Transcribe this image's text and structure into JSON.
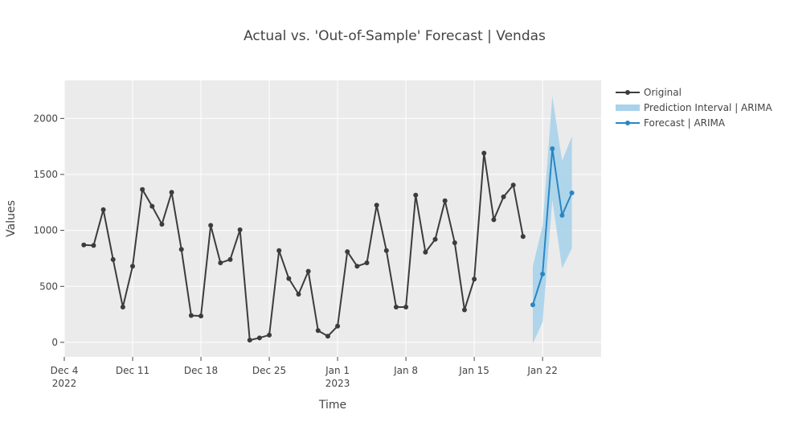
{
  "chart_data": {
    "type": "line",
    "title": "Actual vs. 'Out-of-Sample' Forecast | Vendas",
    "xlabel": "Time",
    "ylabel": "Values",
    "xlim": [
      "2022-12-04",
      "2023-01-28"
    ],
    "ylim": [
      -130,
      2340
    ],
    "grid": true,
    "legend_position": "right",
    "colors": {
      "plot_bg": "#ebebeb",
      "grid": "#ffffff",
      "original": "#3c3c3c",
      "forecast": "#2a86c3",
      "interval": "#a8d3ea"
    },
    "x_ticks": [
      {
        "date": "2022-12-04",
        "label": "Dec 4",
        "sublabel": "2022"
      },
      {
        "date": "2022-12-11",
        "label": "Dec 11",
        "sublabel": ""
      },
      {
        "date": "2022-12-18",
        "label": "Dec 18",
        "sublabel": ""
      },
      {
        "date": "2022-12-25",
        "label": "Dec 25",
        "sublabel": ""
      },
      {
        "date": "2023-01-01",
        "label": "Jan 1",
        "sublabel": "2023"
      },
      {
        "date": "2023-01-08",
        "label": "Jan 8",
        "sublabel": ""
      },
      {
        "date": "2023-01-15",
        "label": "Jan 15",
        "sublabel": ""
      },
      {
        "date": "2023-01-22",
        "label": "Jan 22",
        "sublabel": ""
      }
    ],
    "y_ticks": [
      0,
      500,
      1000,
      1500,
      2000
    ],
    "series": [
      {
        "name": "Original",
        "kind": "line+markers",
        "x": [
          "2022-12-06",
          "2022-12-07",
          "2022-12-08",
          "2022-12-09",
          "2022-12-10",
          "2022-12-11",
          "2022-12-12",
          "2022-12-13",
          "2022-12-14",
          "2022-12-15",
          "2022-12-16",
          "2022-12-17",
          "2022-12-18",
          "2022-12-19",
          "2022-12-20",
          "2022-12-21",
          "2022-12-22",
          "2022-12-23",
          "2022-12-24",
          "2022-12-25",
          "2022-12-26",
          "2022-12-27",
          "2022-12-28",
          "2022-12-29",
          "2022-12-30",
          "2022-12-31",
          "2023-01-01",
          "2023-01-02",
          "2023-01-03",
          "2023-01-04",
          "2023-01-05",
          "2023-01-06",
          "2023-01-07",
          "2023-01-08",
          "2023-01-09",
          "2023-01-10",
          "2023-01-11",
          "2023-01-12",
          "2023-01-13",
          "2023-01-14",
          "2023-01-15",
          "2023-01-16",
          "2023-01-17",
          "2023-01-18",
          "2023-01-19",
          "2023-01-20"
        ],
        "y": [
          870,
          865,
          1185,
          740,
          315,
          680,
          1365,
          1215,
          1055,
          1340,
          830,
          240,
          235,
          1045,
          710,
          740,
          1005,
          20,
          40,
          65,
          820,
          570,
          430,
          635,
          105,
          55,
          145,
          810,
          680,
          710,
          1225,
          820,
          315,
          315,
          1315,
          805,
          920,
          1265,
          890,
          290,
          565,
          1690,
          1095,
          1300,
          1405,
          945
        ]
      },
      {
        "name": "Prediction Interval | ARIMA",
        "kind": "band",
        "x": [
          "2023-01-21",
          "2023-01-22",
          "2023-01-23",
          "2023-01-24",
          "2023-01-25"
        ],
        "lower": [
          -10,
          180,
          1270,
          660,
          840
        ],
        "upper": [
          680,
          1040,
          2200,
          1620,
          1840
        ]
      },
      {
        "name": "Forecast | ARIMA",
        "kind": "line+markers",
        "x": [
          "2023-01-21",
          "2023-01-22",
          "2023-01-23",
          "2023-01-24",
          "2023-01-25"
        ],
        "y": [
          335,
          610,
          1730,
          1135,
          1335
        ]
      }
    ]
  }
}
